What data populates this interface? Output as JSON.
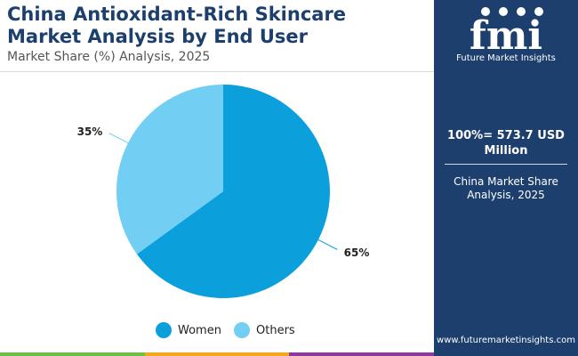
{
  "header": {
    "title": "China Antioxidant-Rich Skincare Market Analysis by End User",
    "subtitle": "Market Share (%) Analysis, 2025"
  },
  "chart_data": {
    "type": "pie",
    "title": "China Antioxidant-Rich Skincare Market Analysis by End User",
    "subtitle": "Market Share (%) Analysis, 2025",
    "categories": [
      "Women",
      "Others"
    ],
    "values": [
      65,
      35
    ],
    "value_labels": [
      "65%",
      "35%"
    ],
    "colors": [
      "#0ba0dc",
      "#72cff3"
    ],
    "legend_position": "bottom"
  },
  "legend": {
    "items": [
      {
        "label": "Women",
        "color": "#0ba0dc"
      },
      {
        "label": "Others",
        "color": "#72cff3"
      }
    ]
  },
  "panel": {
    "logo_text": "fmi",
    "logo_subtitle": "Future Market Insights",
    "total": "100%= 573.7 USD Million",
    "note": "China Market Share Analysis, 2025",
    "website": "www.futuremarketinsights.com",
    "background": "#1d3f6e"
  },
  "bottom_bar": {
    "colors": [
      "#6cc04a",
      "#f2a81d",
      "#8b3a9b",
      "#1d3f6e"
    ]
  }
}
